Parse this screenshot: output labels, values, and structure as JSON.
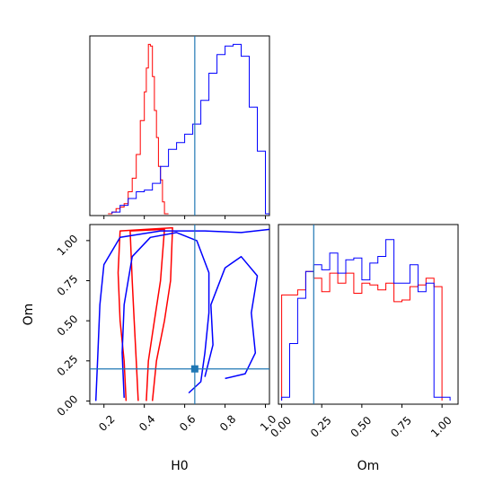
{
  "chart_data": [
    {
      "type": "histogram",
      "panel": "H0 marginal",
      "xlim": [
        0.13,
        1.02
      ],
      "x_ticks": [
        0.2,
        0.4,
        0.6,
        0.8,
        1.0
      ],
      "truth": 0.65,
      "series": [
        {
          "color": "#ff0000",
          "bins": [
            0.22,
            0.24,
            0.26,
            0.28,
            0.3,
            0.32,
            0.34,
            0.36,
            0.38,
            0.4,
            0.41,
            0.42,
            0.43,
            0.44,
            0.45,
            0.46,
            0.47,
            0.48,
            0.49,
            0.5,
            0.52
          ],
          "values": [
            0.0,
            0.01,
            0.03,
            0.04,
            0.06,
            0.13,
            0.21,
            0.35,
            0.55,
            0.72,
            0.86,
            1.0,
            0.99,
            0.81,
            0.61,
            0.45,
            0.28,
            0.2,
            0.07,
            0.0
          ]
        },
        {
          "color": "#0000ff",
          "bins": [
            0.24,
            0.28,
            0.32,
            0.36,
            0.4,
            0.44,
            0.48,
            0.52,
            0.56,
            0.6,
            0.64,
            0.68,
            0.72,
            0.76,
            0.8,
            0.84,
            0.88,
            0.92,
            0.96,
            1.0,
            1.02
          ],
          "values": [
            0.01,
            0.05,
            0.09,
            0.13,
            0.14,
            0.18,
            0.28,
            0.38,
            0.42,
            0.47,
            0.53,
            0.67,
            0.83,
            0.94,
            0.99,
            1.0,
            0.93,
            0.63,
            0.37,
            0.0
          ]
        }
      ]
    },
    {
      "type": "contour",
      "panel": "H0 vs Om",
      "xlabel": "H0",
      "ylabel": "Om",
      "xlim": [
        0.13,
        1.02
      ],
      "ylim": [
        -0.02,
        1.1
      ],
      "x_ticks": [
        "0.2",
        "0.4",
        "0.6",
        "0.8",
        "1.0"
      ],
      "y_ticks": [
        "0.00",
        "0.25",
        "0.50",
        "0.75",
        "1.00"
      ],
      "truth": {
        "x": 0.65,
        "y": 0.2
      },
      "series": [
        {
          "color": "#ff0000",
          "contours": [
            [
              [
                0.37,
                0.0
              ],
              [
                0.36,
                0.25
              ],
              [
                0.35,
                0.5
              ],
              [
                0.34,
                0.75
              ],
              [
                0.33,
                1.06
              ],
              [
                0.5,
                1.07
              ],
              [
                0.48,
                0.75
              ],
              [
                0.45,
                0.5
              ],
              [
                0.42,
                0.25
              ],
              [
                0.41,
                0.0
              ]
            ],
            [
              [
                0.31,
                0.0
              ],
              [
                0.3,
                0.25
              ],
              [
                0.28,
                0.5
              ],
              [
                0.27,
                0.8
              ],
              [
                0.28,
                1.06
              ],
              [
                0.54,
                1.08
              ],
              [
                0.53,
                0.75
              ],
              [
                0.5,
                0.5
              ],
              [
                0.46,
                0.25
              ],
              [
                0.44,
                0.0
              ]
            ]
          ]
        },
        {
          "color": "#0000ff",
          "contours": [
            [
              [
                0.3,
                0.02
              ],
              [
                0.29,
                0.3
              ],
              [
                0.3,
                0.6
              ],
              [
                0.34,
                0.9
              ],
              [
                0.43,
                1.02
              ],
              [
                0.56,
                1.05
              ],
              [
                0.66,
                1.0
              ],
              [
                0.72,
                0.8
              ],
              [
                0.72,
                0.55
              ],
              [
                0.7,
                0.3
              ],
              [
                0.68,
                0.12
              ],
              [
                0.62,
                0.05
              ]
            ],
            [
              [
                0.16,
                0.0
              ],
              [
                0.17,
                0.3
              ],
              [
                0.18,
                0.6
              ],
              [
                0.2,
                0.85
              ],
              [
                0.28,
                1.02
              ],
              [
                0.48,
                1.06
              ],
              [
                0.7,
                1.06
              ],
              [
                0.88,
                1.05
              ],
              [
                1.02,
                1.07
              ]
            ],
            [
              [
                0.7,
                0.15
              ],
              [
                0.74,
                0.35
              ],
              [
                0.73,
                0.6
              ],
              [
                0.8,
                0.83
              ],
              [
                0.88,
                0.9
              ],
              [
                0.96,
                0.78
              ],
              [
                0.93,
                0.55
              ],
              [
                0.95,
                0.3
              ],
              [
                0.9,
                0.17
              ],
              [
                0.8,
                0.14
              ]
            ]
          ]
        }
      ]
    },
    {
      "type": "histogram",
      "panel": "Om marginal",
      "xlabel": "Om",
      "xlim": [
        -0.02,
        1.1
      ],
      "x_ticks": [
        "0.00",
        "0.25",
        "0.50",
        "0.75",
        "1.00"
      ],
      "truth": 0.2,
      "series": [
        {
          "color": "#ff0000",
          "bins": [
            0.0,
            0.05,
            0.1,
            0.15,
            0.2,
            0.25,
            0.3,
            0.35,
            0.4,
            0.45,
            0.5,
            0.55,
            0.6,
            0.65,
            0.7,
            0.75,
            0.8,
            0.85,
            0.9,
            0.95,
            1.0
          ],
          "values": [
            0.63,
            0.63,
            0.66,
            0.77,
            0.73,
            0.65,
            0.76,
            0.7,
            0.76,
            0.64,
            0.7,
            0.69,
            0.66,
            0.7,
            0.59,
            0.6,
            0.68,
            0.69,
            0.73,
            0.68
          ]
        },
        {
          "color": "#0000ff",
          "bins": [
            0.0,
            0.05,
            0.1,
            0.15,
            0.2,
            0.25,
            0.3,
            0.35,
            0.4,
            0.45,
            0.5,
            0.55,
            0.6,
            0.65,
            0.7,
            0.75,
            0.8,
            0.85,
            0.9,
            0.95,
            1.0,
            1.05
          ],
          "values": [
            0.02,
            0.34,
            0.61,
            0.77,
            0.81,
            0.78,
            0.88,
            0.76,
            0.84,
            0.85,
            0.72,
            0.82,
            0.86,
            0.96,
            0.7,
            0.7,
            0.81,
            0.65,
            0.7,
            0.02,
            0.02
          ]
        }
      ]
    }
  ]
}
